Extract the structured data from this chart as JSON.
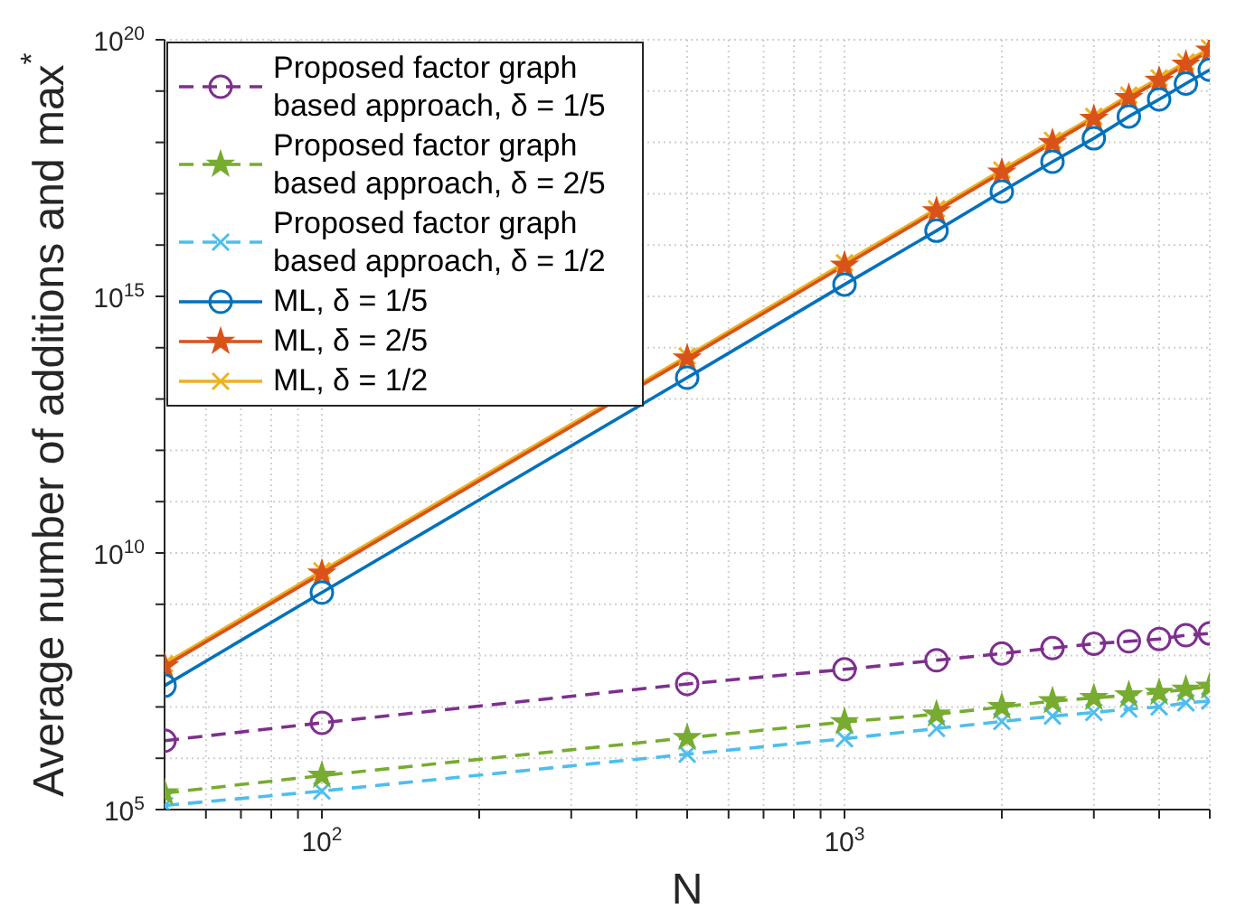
{
  "chart_data": {
    "type": "line",
    "xlabel": "N",
    "ylabel": "Average number of additions and max$^{*}$",
    "x": [
      50,
      100,
      500,
      1000,
      1500,
      2000,
      2500,
      3000,
      3500,
      4000,
      4500,
      5000
    ],
    "series": [
      {
        "name": "Proposed factor graph based approach, δ = 1/5",
        "color": "#7e2f8e",
        "marker": "circle",
        "line_style": "dashed",
        "values": [
          2200000.0,
          4900000.0,
          28000000.0,
          54000000.0,
          81000000.0,
          110000000.0,
          140000000.0,
          170000000.0,
          190000000.0,
          210000000.0,
          250000000.0,
          270000000.0
        ]
      },
      {
        "name": "Proposed factor graph based approach, δ = 2/5",
        "color": "#77ac30",
        "marker": "star",
        "line_style": "dashed",
        "values": [
          210000.0,
          460000.0,
          2500000.0,
          5100000.0,
          7200000.0,
          10000000.0,
          13000000.0,
          15000000.0,
          17000000.0,
          19000000.0,
          22000000.0,
          25000000.0
        ]
      },
      {
        "name": "Proposed factor graph based approach, δ = 1/2",
        "color": "#4dbeee",
        "marker": "cross",
        "line_style": "dashed",
        "values": [
          120000.0,
          230000.0,
          1200000.0,
          2400000.0,
          3800000.0,
          5200000.0,
          6600000.0,
          7800000.0,
          9100000.0,
          10000000.0,
          12000000.0,
          13000000.0
        ]
      },
      {
        "name": "ML, δ = 1/5",
        "color": "#0072bd",
        "marker": "circle",
        "line_style": "solid",
        "values": [
          26000000.0,
          1700000000.0,
          26000000000000.0,
          1700000000000000.0,
          1.9e+16,
          1.1e+17,
          4.2e+17,
          1.2e+18,
          3.2e+18,
          6.9e+18,
          1.4e+19,
          2.6e+19
        ]
      },
      {
        "name": "ML, δ = 2/5",
        "color": "#d95319",
        "marker": "star",
        "line_style": "solid",
        "values": [
          62000000.0,
          4000000000.0,
          62000000000000.0,
          4000000000000000.0,
          4.6e+16,
          2.6e+17,
          9.8e+17,
          2.9e+18,
          7.4e+18,
          1.6e+19,
          3.3e+19,
          6.2e+19
        ]
      },
      {
        "name": "ML, δ = 1/2",
        "color": "#edb120",
        "marker": "cross",
        "line_style": "solid",
        "values": [
          69000000.0,
          4500000000.0,
          69000000000000.0,
          4500000000000000.0,
          5.1e+16,
          2.9e+17,
          1.1e+18,
          3.2e+18,
          8.3e+18,
          1.8e+19,
          3.7e+19,
          6.9e+19
        ]
      }
    ],
    "log": "xy",
    "xlim": [
      50,
      5000
    ],
    "xticks": [
      {
        "value": 60,
        "label": null
      },
      {
        "value": 70,
        "label": null
      },
      {
        "value": 80,
        "label": null
      },
      {
        "value": 90,
        "label": null
      },
      {
        "value": 100,
        "label": "10$^{2}$"
      },
      {
        "value": 200,
        "label": null
      },
      {
        "value": 300,
        "label": null
      },
      {
        "value": 400,
        "label": null
      },
      {
        "value": 500,
        "label": null
      },
      {
        "value": 600,
        "label": null
      },
      {
        "value": 700,
        "label": null
      },
      {
        "value": 800,
        "label": null
      },
      {
        "value": 900,
        "label": null
      },
      {
        "value": 1000,
        "label": "10$^{3}$"
      },
      {
        "value": 2000,
        "label": null
      },
      {
        "value": 3000,
        "label": null
      },
      {
        "value": 4000,
        "label": null
      },
      {
        "value": 5000,
        "label": null
      }
    ],
    "ylim": [
      100000.0,
      1e+20
    ],
    "yticks": [
      {
        "value": 100000.0,
        "label": "10$^{5}$"
      },
      {
        "value": 1000000.0,
        "label": null
      },
      {
        "value": 10000000.0,
        "label": null
      },
      {
        "value": 100000000.0,
        "label": null
      },
      {
        "value": 1000000000.0,
        "label": null
      },
      {
        "value": 10000000000.0,
        "label": "10$^{10}$"
      },
      {
        "value": 100000000000.0,
        "label": null
      },
      {
        "value": 1000000000000.0,
        "label": null
      },
      {
        "value": 10000000000000.0,
        "label": null
      },
      {
        "value": 100000000000000.0,
        "label": null
      },
      {
        "value": 1000000000000000.0,
        "label": "10$^{15}$"
      },
      {
        "value": 1e+16,
        "label": null
      },
      {
        "value": 1e+17,
        "label": null
      },
      {
        "value": 1e+18,
        "label": null
      },
      {
        "value": 1e+19,
        "label": null
      },
      {
        "value": 1e+20,
        "label": "10$^{20}$"
      }
    ],
    "grid": true,
    "legend": "top left"
  }
}
